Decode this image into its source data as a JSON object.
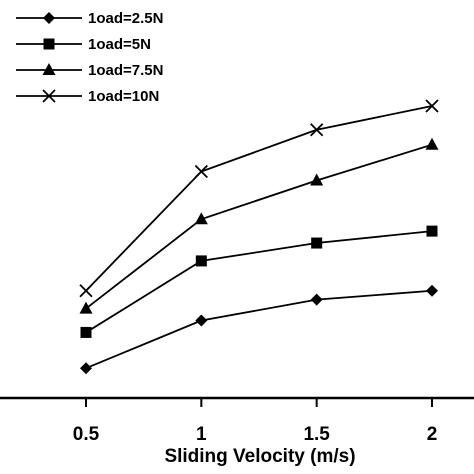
{
  "chart_data": {
    "type": "line",
    "title": "",
    "xlabel": "Sliding Velocity (m/s)",
    "ylabel": "",
    "x": [
      0.5,
      1,
      1.5,
      2
    ],
    "x_tick_labels": [
      "0.5",
      "1",
      "1.5",
      "2"
    ],
    "xlim": [
      0.5,
      2
    ],
    "ylim": [
      0,
      100
    ],
    "grid": false,
    "legend_position": "top-left",
    "series": [
      {
        "name": "1oad=2.5N",
        "marker": "diamond",
        "values": [
          10,
          26,
          33,
          36
        ]
      },
      {
        "name": "1oad=5N",
        "marker": "square",
        "values": [
          22,
          46,
          52,
          56
        ]
      },
      {
        "name": "1oad=7.5N",
        "marker": "triangle",
        "values": [
          30,
          60,
          73,
          85
        ]
      },
      {
        "name": "1oad=10N",
        "marker": "x",
        "values": [
          36,
          76,
          90,
          98
        ]
      }
    ],
    "colors": {
      "line": "#000000",
      "background": "#ffffff"
    }
  }
}
